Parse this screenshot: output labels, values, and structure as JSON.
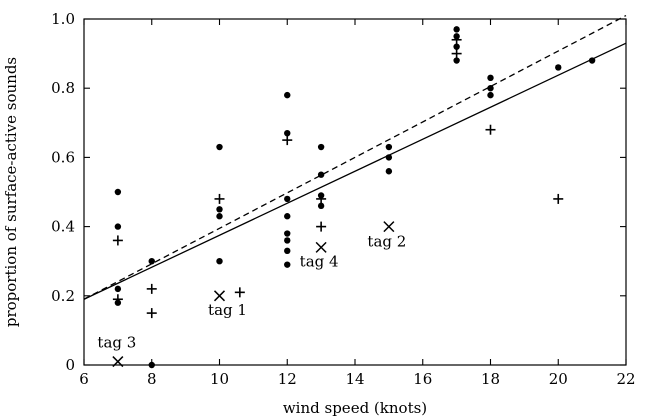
{
  "chart_data": {
    "type": "scatter",
    "xlabel": "wind speed (knots)",
    "ylabel": "proportion of surface-active sounds",
    "xlim": [
      6,
      22
    ],
    "ylim": [
      0,
      1.0
    ],
    "x_ticks": [
      6,
      8,
      10,
      12,
      14,
      16,
      18,
      20,
      22
    ],
    "y_ticks": [
      0,
      0.2,
      0.4,
      0.6,
      0.8,
      1.0
    ],
    "x_tick_labels": [
      "6",
      "8",
      "10",
      "12",
      "14",
      "16",
      "18",
      "20",
      "22"
    ],
    "y_tick_labels": [
      "0",
      "0.2",
      "0.4",
      "0.6",
      "0.8",
      "1.0"
    ],
    "grid": false,
    "series": [
      {
        "marker": "dot",
        "points": [
          [
            7,
            0.5
          ],
          [
            7,
            0.4
          ],
          [
            7,
            0.22
          ],
          [
            7,
            0.18
          ],
          [
            8,
            0.3
          ],
          [
            8,
            0.0
          ],
          [
            10,
            0.63
          ],
          [
            10,
            0.45
          ],
          [
            10,
            0.43
          ],
          [
            10,
            0.3
          ],
          [
            12,
            0.78
          ],
          [
            12,
            0.67
          ],
          [
            12,
            0.48
          ],
          [
            12,
            0.43
          ],
          [
            12,
            0.38
          ],
          [
            12,
            0.36
          ],
          [
            12,
            0.33
          ],
          [
            12,
            0.29
          ],
          [
            13,
            0.63
          ],
          [
            13,
            0.55
          ],
          [
            13,
            0.49
          ],
          [
            13,
            0.46
          ],
          [
            15,
            0.63
          ],
          [
            15,
            0.6
          ],
          [
            15,
            0.56
          ],
          [
            17,
            0.97
          ],
          [
            17,
            0.95
          ],
          [
            17,
            0.92
          ],
          [
            17,
            0.88
          ],
          [
            18,
            0.83
          ],
          [
            18,
            0.8
          ],
          [
            18,
            0.78
          ],
          [
            20,
            0.86
          ],
          [
            21,
            0.88
          ]
        ]
      },
      {
        "marker": "plus",
        "points": [
          [
            7,
            0.36
          ],
          [
            7,
            0.19
          ],
          [
            8,
            0.22
          ],
          [
            8,
            0.15
          ],
          [
            10,
            0.48
          ],
          [
            10.6,
            0.21
          ],
          [
            12,
            0.65
          ],
          [
            13,
            0.48
          ],
          [
            13,
            0.4
          ],
          [
            17,
            0.94
          ],
          [
            17,
            0.9
          ],
          [
            18,
            0.68
          ],
          [
            20,
            0.48
          ]
        ]
      },
      {
        "marker": "cross",
        "points": [
          [
            7,
            0.01,
            "tag 3"
          ],
          [
            10,
            0.2,
            "tag 1"
          ],
          [
            13,
            0.34,
            "tag 4"
          ],
          [
            15,
            0.4,
            "tag 2"
          ]
        ]
      }
    ],
    "lines": [
      {
        "style": "solid",
        "from": [
          6,
          0.19
        ],
        "to": [
          22,
          0.93
        ]
      },
      {
        "style": "dashed",
        "from": [
          6,
          0.19
        ],
        "to": [
          22,
          1.01
        ]
      }
    ]
  }
}
